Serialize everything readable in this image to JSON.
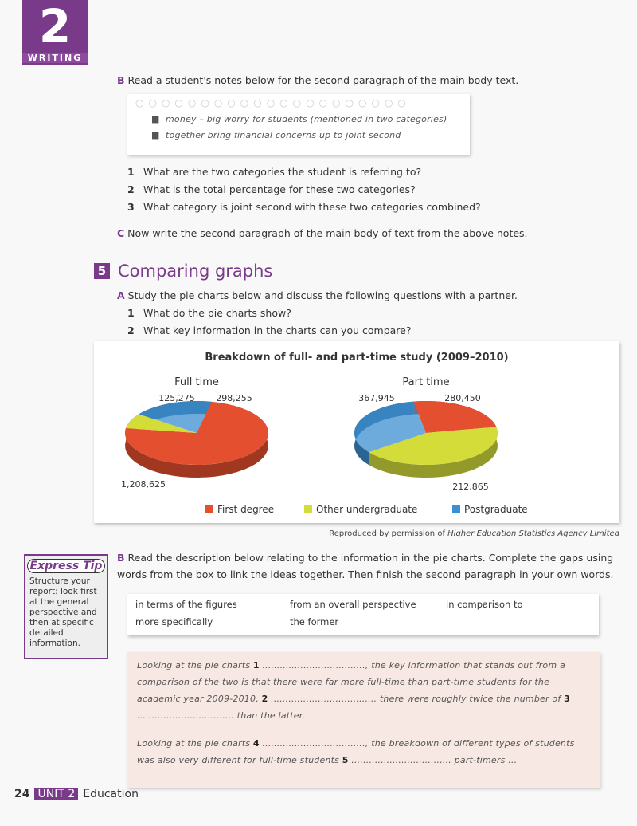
{
  "unit_badge": {
    "number": "2",
    "label": "WRITING"
  },
  "sectionB": {
    "letter": "B",
    "text": "Read a student's notes below for the second paragraph of the main body text.",
    "notes": [
      "money – big worry for students (mentioned in two categories)",
      "together bring financial concerns up to joint second"
    ],
    "questions": [
      {
        "n": "1",
        "text": "What are the two categories the student is referring to?"
      },
      {
        "n": "2",
        "text": "What is the total percentage for these two categories?"
      },
      {
        "n": "3",
        "text": "What category is joint second with these two categories combined?"
      }
    ]
  },
  "sectionC": {
    "letter": "C",
    "text": "Now write the second paragraph of the main body of text from the above notes."
  },
  "section5": {
    "number": "5",
    "title": "Comparing graphs",
    "A": {
      "letter": "A",
      "text": "Study the pie charts below and discuss the following questions with a partner.",
      "questions": [
        {
          "n": "1",
          "text": "What do the pie charts show?"
        },
        {
          "n": "2",
          "text": "What key information in the charts can you compare?"
        }
      ]
    }
  },
  "chart_data": {
    "type": "pie",
    "title": "Breakdown of full- and part-time study (2009–2010)",
    "legend_placement": "bottom",
    "categories": [
      "First degree",
      "Other undergraduate",
      "Postgraduate"
    ],
    "colors": [
      "#e4502f",
      "#d4dc3a",
      "#3c8fd0"
    ],
    "charts": [
      {
        "title": "Full time",
        "values": [
          1208625,
          125275,
          298255
        ],
        "labels": [
          "1,208,625",
          "125,275",
          "298,255"
        ]
      },
      {
        "title": "Part time",
        "values": [
          212865,
          367945,
          280450
        ],
        "labels": [
          "212,865",
          "367,945",
          "280,450"
        ]
      }
    ]
  },
  "credit": {
    "prefix": "Reproduced by permission of ",
    "source": "Higher Education Statistics Agency Limited"
  },
  "tip": {
    "title": "Express Tip",
    "text": "Structure your report: look first at the general perspective and then at specific detailed information."
  },
  "sectionB2": {
    "letter": "B",
    "text": "Read the description below relating to the information in the pie charts. Complete the gaps using words from the box to link the ideas together. Then finish the second paragraph in your own words."
  },
  "wordbox": [
    "in terms of the figures",
    "from an overall perspective",
    "in comparison to",
    "more specifically",
    "the former"
  ],
  "paragraphs": {
    "p1": [
      {
        "t": "Looking at the pie charts "
      },
      {
        "b": "1"
      },
      {
        "t": " ..................................., the key information that stands out from a comparison of the two is that there were far more full-time than part-time students for the academic year 2009-2010. "
      },
      {
        "b": "2"
      },
      {
        "t": " .................................... there were roughly twice the number of "
      },
      {
        "b": "3"
      },
      {
        "t": " ................................. than the latter."
      }
    ],
    "p2": [
      {
        "t": "Looking at the pie charts "
      },
      {
        "b": "4"
      },
      {
        "t": " ..................................., the breakdown of different types of students was also very different for full-time students "
      },
      {
        "b": "5"
      },
      {
        "t": " .................................. part-timers ..."
      }
    ]
  },
  "footer": {
    "page": "24",
    "unit": "UNIT 2",
    "topic": "Education"
  }
}
